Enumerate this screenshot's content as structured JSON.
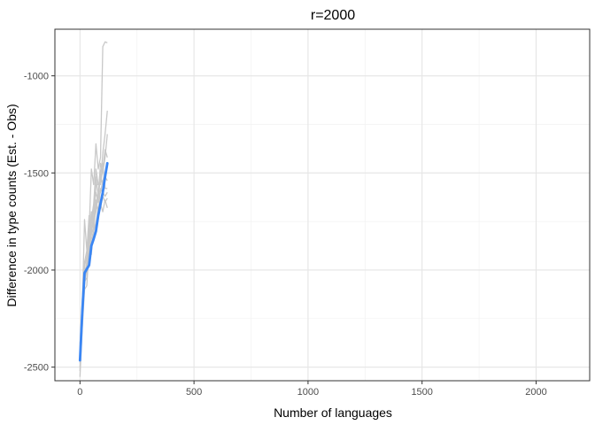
{
  "chart_data": {
    "type": "line",
    "title": "r=2000",
    "xlabel": "Number of languages",
    "ylabel": "Difference in type counts (Est. - Obs)",
    "xlim": [
      -110,
      2235
    ],
    "ylim": [
      -2570,
      -760
    ],
    "x_ticks": [
      0,
      500,
      1000,
      1500,
      2000
    ],
    "x_tick_labels": [
      "0",
      "500",
      "1000",
      "1500",
      "2000"
    ],
    "y_ticks": [
      -2500,
      -2000,
      -1500,
      -1000
    ],
    "y_tick_labels": [
      "-2500",
      "-2000",
      "-1500",
      "-1000"
    ],
    "grid": true,
    "colors": {
      "mean_line": "#3a86f4",
      "replicate_lines": "#c8c8c8",
      "grid_major": "#e5e5e5",
      "grid_minor": "#f2f2f2",
      "panel_border": "#333333"
    },
    "replicates": [
      {
        "x": [
          0,
          10,
          20,
          30,
          40,
          50,
          60,
          70,
          80,
          90,
          100,
          110,
          120
        ],
        "y": [
          -2480,
          -2200,
          -1740,
          -1900,
          -1800,
          -1480,
          -1560,
          -1350,
          -1480,
          -1420,
          -850,
          -825,
          -830
        ]
      },
      {
        "x": [
          0,
          10,
          20,
          30,
          40,
          50,
          60,
          70,
          80,
          90,
          100,
          110,
          120
        ],
        "y": [
          -2450,
          -2240,
          -2000,
          -2020,
          -1840,
          -1700,
          -1760,
          -1560,
          -1560,
          -1540,
          -1400,
          -1300,
          -1180
        ]
      },
      {
        "x": [
          0,
          10,
          20,
          30,
          40,
          50,
          60,
          70,
          80,
          90,
          100,
          110,
          120
        ],
        "y": [
          -2400,
          -2150,
          -1960,
          -1900,
          -1720,
          -1820,
          -1680,
          -1600,
          -1650,
          -1500,
          -1450,
          -1580,
          -1580
        ]
      },
      {
        "x": [
          0,
          10,
          20,
          30,
          40,
          50,
          60,
          70,
          80,
          90,
          100,
          110,
          120
        ],
        "y": [
          -2520,
          -2260,
          -2050,
          -2000,
          -1900,
          -1800,
          -1750,
          -1700,
          -1620,
          -1600,
          -1540,
          -1500,
          -1450
        ]
      },
      {
        "x": [
          0,
          10,
          20,
          30,
          40,
          50,
          60,
          70,
          80,
          90,
          100,
          110,
          120
        ],
        "y": [
          -2430,
          -2180,
          -2080,
          -1950,
          -1950,
          -1780,
          -1820,
          -1640,
          -1700,
          -1580,
          -1600,
          -1620,
          -1600
        ]
      },
      {
        "x": [
          0,
          10,
          20,
          30,
          40,
          50,
          60,
          70,
          80,
          90,
          100,
          110,
          120
        ],
        "y": [
          -2550,
          -2300,
          -2100,
          -2080,
          -1880,
          -1920,
          -1760,
          -1780,
          -1700,
          -1680,
          -1620,
          -1650,
          -1630
        ]
      },
      {
        "x": [
          0,
          10,
          20,
          30,
          40,
          50,
          60,
          70,
          80,
          90,
          100,
          110,
          120
        ],
        "y": [
          -2470,
          -2250,
          -2020,
          -1960,
          -1850,
          -1760,
          -1700,
          -1520,
          -1620,
          -1450,
          -1500,
          -1420,
          -1300
        ]
      },
      {
        "x": [
          0,
          10,
          20,
          30,
          40,
          50,
          60,
          70,
          80,
          90,
          100,
          110,
          120
        ],
        "y": [
          -2380,
          -2200,
          -2060,
          -2040,
          -1920,
          -1840,
          -1800,
          -1760,
          -1680,
          -1660,
          -1700,
          -1640,
          -1680
        ]
      },
      {
        "x": [
          0,
          10,
          20,
          30,
          40,
          50,
          60,
          70,
          80,
          90,
          100,
          110,
          120
        ],
        "y": [
          -2500,
          -2280,
          -1980,
          -1930,
          -1800,
          -1740,
          -1660,
          -1480,
          -1560,
          -1560,
          -1480,
          -1380,
          -1420
        ]
      },
      {
        "x": [
          0,
          10,
          20,
          30,
          40,
          50,
          60,
          70,
          80,
          90,
          100,
          110,
          120
        ],
        "y": [
          -2460,
          -2220,
          -2040,
          -1980,
          -1880,
          -1700,
          -1740,
          -1660,
          -1600,
          -1520,
          -1560,
          -1520,
          -1540
        ]
      }
    ],
    "series": [
      {
        "x": [
          0,
          10,
          20,
          30,
          40,
          50,
          60,
          70,
          80,
          90,
          100,
          110,
          120
        ],
        "y": [
          -2465,
          -2220,
          -2015,
          -1995,
          -1975,
          -1875,
          -1840,
          -1800,
          -1720,
          -1660,
          -1600,
          -1520,
          -1450
        ]
      }
    ]
  }
}
